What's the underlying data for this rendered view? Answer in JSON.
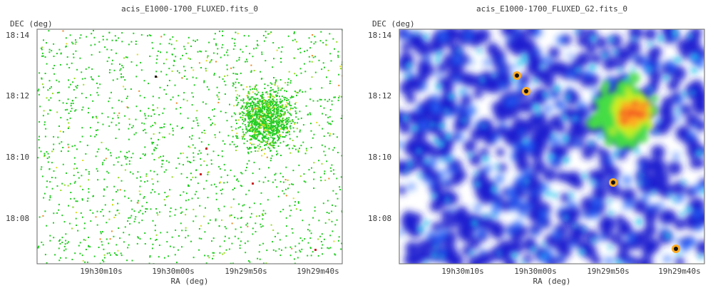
{
  "panels": [
    {
      "title": "acis_E1000-1700_FLUXED.fits_0",
      "ylabel": "DEC (deg)",
      "xlabel": "RA (deg)",
      "style": "scatter",
      "x_ticks": [
        "19h30m10s",
        "19h30m00s",
        "19h29m50s",
        "19h29m40s"
      ],
      "y_ticks": [
        "18:14",
        "18:12",
        "18:10",
        "18:08"
      ]
    },
    {
      "title": "acis_E1000-1700_FLUXED_G2.fits_0",
      "ylabel": "DEC (deg)",
      "xlabel": "RA (deg)",
      "style": "smoothed",
      "x_ticks": [
        "19h30m10s",
        "19h30m00s",
        "19h29m50s",
        "19h29m40s"
      ],
      "y_ticks": [
        "18:14",
        "18:12",
        "18:10",
        "18:08"
      ]
    }
  ],
  "chart_data": [
    {
      "type": "heatmap",
      "title": "acis_E1000-1700_FLUXED.fits_0",
      "xlabel": "RA (deg)",
      "ylabel": "DEC (deg)",
      "x_ticks": [
        "19h30m10s",
        "19h30m00s",
        "19h29m50s",
        "19h29m40s"
      ],
      "y_ticks": [
        "18:14",
        "18:12",
        "18:10",
        "18:08"
      ],
      "grid": false,
      "colors": [
        "#22cc22",
        "#99dd22",
        "#dddd22",
        "#ee8822",
        "#cc2222",
        "#111111"
      ]
    },
    {
      "type": "heatmap",
      "title": "acis_E1000-1700_FLUXED_G2.fits_0",
      "xlabel": "RA (deg)",
      "ylabel": "DEC (deg)",
      "x_ticks": [
        "19h30m10s",
        "19h30m00s",
        "19h29m50s",
        "19h29m40s"
      ],
      "y_ticks": [
        "18:14",
        "18:12",
        "18:10",
        "18:08"
      ],
      "grid": false,
      "colors": [
        "#1a1ad0",
        "#2266ff",
        "#22c4ee",
        "#44dd44",
        "#ccee22",
        "#ffaa22",
        "#ee3322",
        "#111111"
      ]
    }
  ]
}
